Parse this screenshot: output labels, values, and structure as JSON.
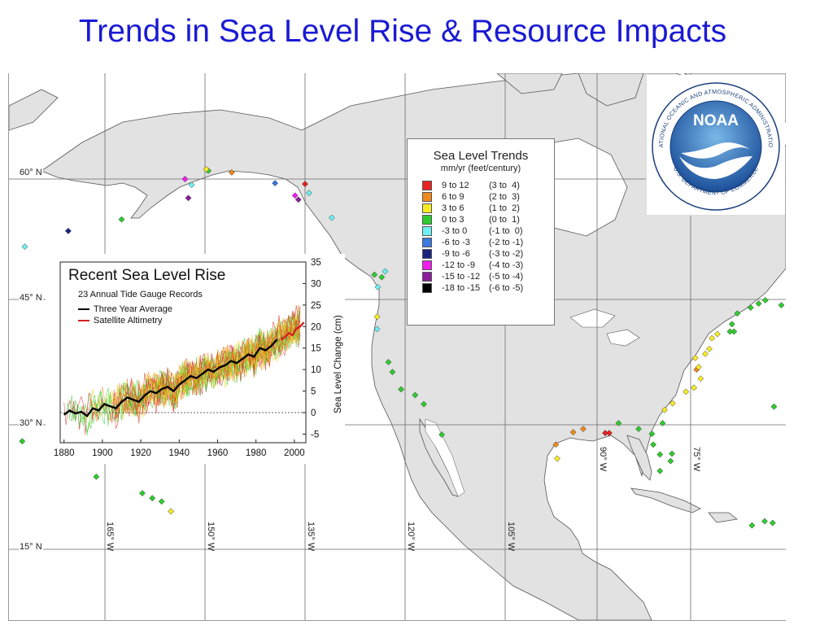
{
  "title": "Trends in Sea Level Rise & Resource Impacts",
  "map": {
    "lat_labels": [
      "60° N",
      "45° N",
      "30° N",
      "15° N"
    ],
    "lon_labels": [
      "165° W",
      "150° W",
      "135° W",
      "120° W",
      "105° W",
      "90° W",
      "75° W"
    ]
  },
  "legend": {
    "title": "Sea Level Trends",
    "subtitle": "mm/yr (feet/century)",
    "items": [
      {
        "range": "9 to 12",
        "feet": "(3 to  4)",
        "color": "#e8231f"
      },
      {
        "range": "6 to 9",
        "feet": "(2 to  3)",
        "color": "#f08a1c"
      },
      {
        "range": "3 to 6",
        "feet": "(1 to  2)",
        "color": "#f7ec24"
      },
      {
        "range": "0 to 3",
        "feet": "(0 to  1)",
        "color": "#2ecc2e"
      },
      {
        "range": "-3 to 0",
        "feet": "(-1 to  0)",
        "color": "#6ff0f2"
      },
      {
        "range": "-6 to -3",
        "feet": "(-2 to -1)",
        "color": "#3b78e0"
      },
      {
        "range": "-9 to -6",
        "feet": "(-3 to -2)",
        "color": "#1a2480"
      },
      {
        "range": "-12 to -9",
        "feet": "(-4 to -3)",
        "color": "#f01cf0"
      },
      {
        "range": "-15 to -12",
        "feet": "(-5 to -4)",
        "color": "#8a1e9a"
      },
      {
        "range": "-18 to -15",
        "feet": "(-6 to -5)",
        "color": "#000000"
      }
    ]
  },
  "noaa_logo": {
    "text": "NOAA",
    "ring_text": "NATIONAL OCEANIC AND ATMOSPHERIC ADMINISTRATION",
    "bottom_text": "U.S. DEPARTMENT OF COMMERCE"
  },
  "inset_chart": {
    "title": "Recent Sea Level Rise",
    "subtitle": "23 Annual Tide Gauge Records",
    "legend": [
      {
        "label": "Three Year Average",
        "color": "#000000"
      },
      {
        "label": "Satellite Altimetry",
        "color": "#d42020"
      }
    ]
  },
  "chart_data": {
    "type": "line",
    "title": "Recent Sea Level Rise",
    "subtitle": "23 Annual Tide Gauge Records",
    "xlabel": "",
    "ylabel": "Sea Level Change (cm)",
    "xlim": [
      1878,
      2006
    ],
    "ylim": [
      -7,
      35
    ],
    "x_ticks": [
      1880,
      1900,
      1920,
      1940,
      1960,
      1980,
      2000
    ],
    "y_ticks": [
      -5,
      0,
      5,
      10,
      15,
      20,
      25,
      30,
      35
    ],
    "zero_line": "dashed",
    "series": [
      {
        "name": "Three Year Average",
        "color": "#000000",
        "x": [
          1880,
          1883,
          1886,
          1889,
          1892,
          1895,
          1898,
          1901,
          1904,
          1907,
          1910,
          1913,
          1916,
          1919,
          1922,
          1925,
          1928,
          1931,
          1934,
          1937,
          1940,
          1943,
          1946,
          1949,
          1952,
          1955,
          1958,
          1961,
          1964,
          1967,
          1970,
          1973,
          1976,
          1979,
          1982,
          1985,
          1988,
          1991
        ],
        "values": [
          -0.5,
          0.5,
          -0.2,
          0.2,
          -0.8,
          1.0,
          0.5,
          2.0,
          1.5,
          1.0,
          2.5,
          3.5,
          3.0,
          2.5,
          4.0,
          5.0,
          4.5,
          5.5,
          6.0,
          5.0,
          6.5,
          7.5,
          8.5,
          8.0,
          9.0,
          10.0,
          9.5,
          10.5,
          11.0,
          12.0,
          11.5,
          12.5,
          13.5,
          13.0,
          15.0,
          14.5,
          15.5,
          17.0
        ]
      },
      {
        "name": "Satellite Altimetry",
        "color": "#d42020",
        "x": [
          1993,
          1995,
          1997,
          1999,
          2001,
          2003,
          2005
        ],
        "values": [
          17.0,
          17.5,
          18.5,
          18.0,
          19.5,
          20.0,
          21.0
        ]
      }
    ],
    "tide_gauge_records": {
      "count": 23,
      "colors": [
        "#d42020",
        "#f08a1c",
        "#e8d21a",
        "#2ecc2e"
      ]
    }
  },
  "stations": [
    {
      "c": 4,
      "lon": -131,
      "lat": 55.3
    },
    {
      "c": 4,
      "lon": -134.4,
      "lat": 58.3
    },
    {
      "c": 0,
      "lon": -135,
      "lat": 59.4
    },
    {
      "c": 7,
      "lon": -136.5,
      "lat": 58.0
    },
    {
      "c": 8,
      "lon": -136.0,
      "lat": 57.5
    },
    {
      "c": 3,
      "lon": -149.5,
      "lat": 61.0
    },
    {
      "c": 2,
      "lon": -149.8,
      "lat": 61.2
    },
    {
      "c": 1,
      "lon": -146.0,
      "lat": 60.8
    },
    {
      "c": 5,
      "lon": -139.5,
      "lat": 59.5
    },
    {
      "c": 4,
      "lon": -152.0,
      "lat": 59.3
    },
    {
      "c": 7,
      "lon": -153.0,
      "lat": 60.0
    },
    {
      "c": 8,
      "lon": -152.5,
      "lat": 57.7
    },
    {
      "c": 3,
      "lon": -162.5,
      "lat": 55.1
    },
    {
      "c": 6,
      "lon": -170.5,
      "lat": 53.7
    },
    {
      "c": 4,
      "lon": -177.0,
      "lat": 51.8
    },
    {
      "c": 3,
      "lon": -124.6,
      "lat": 48.4
    },
    {
      "c": 4,
      "lon": -123.0,
      "lat": 48.8
    },
    {
      "c": 3,
      "lon": -123.5,
      "lat": 48.1
    },
    {
      "c": 4,
      "lon": -124.1,
      "lat": 46.9
    },
    {
      "c": 2,
      "lon": -124.2,
      "lat": 43.3
    },
    {
      "c": 4,
      "lon": -124.2,
      "lat": 41.8
    },
    {
      "c": 3,
      "lon": -122.5,
      "lat": 37.8
    },
    {
      "c": 3,
      "lon": -121.9,
      "lat": 36.6
    },
    {
      "c": 3,
      "lon": -120.6,
      "lat": 34.5
    },
    {
      "c": 3,
      "lon": -118.5,
      "lat": 33.8
    },
    {
      "c": 3,
      "lon": -117.2,
      "lat": 32.7
    },
    {
      "c": 3,
      "lon": -114.5,
      "lat": 29.0
    },
    {
      "c": 2,
      "lon": -97.2,
      "lat": 26.1
    },
    {
      "c": 1,
      "lon": -97.4,
      "lat": 27.8
    },
    {
      "c": 1,
      "lon": -94.8,
      "lat": 29.3
    },
    {
      "c": 1,
      "lon": -93.3,
      "lat": 29.7
    },
    {
      "c": 0,
      "lon": -90.0,
      "lat": 29.2
    },
    {
      "c": 0,
      "lon": -89.4,
      "lat": 29.2
    },
    {
      "c": 3,
      "lon": -88.0,
      "lat": 30.4
    },
    {
      "c": 3,
      "lon": -85.0,
      "lat": 29.7
    },
    {
      "c": 3,
      "lon": -83.0,
      "lat": 29.1
    },
    {
      "c": 3,
      "lon": -82.8,
      "lat": 27.8
    },
    {
      "c": 3,
      "lon": -81.8,
      "lat": 26.6
    },
    {
      "c": 3,
      "lon": -81.8,
      "lat": 24.6
    },
    {
      "c": 3,
      "lon": -80.2,
      "lat": 25.8
    },
    {
      "c": 3,
      "lon": -80.0,
      "lat": 26.7
    },
    {
      "c": 3,
      "lon": -81.4,
      "lat": 30.4
    },
    {
      "c": 2,
      "lon": -81.1,
      "lat": 32.0
    },
    {
      "c": 2,
      "lon": -79.9,
      "lat": 32.8
    },
    {
      "c": 2,
      "lon": -77.9,
      "lat": 34.2
    },
    {
      "c": 2,
      "lon": -76.7,
      "lat": 34.7
    },
    {
      "c": 2,
      "lon": -75.7,
      "lat": 35.8
    },
    {
      "c": 1,
      "lon": -76.3,
      "lat": 36.9
    },
    {
      "c": 2,
      "lon": -76.0,
      "lat": 37.2
    },
    {
      "c": 2,
      "lon": -76.5,
      "lat": 38.3
    },
    {
      "c": 2,
      "lon": -75.0,
      "lat": 38.8
    },
    {
      "c": 2,
      "lon": -74.4,
      "lat": 39.4
    },
    {
      "c": 2,
      "lon": -74.0,
      "lat": 40.7
    },
    {
      "c": 2,
      "lon": -73.2,
      "lat": 41.2
    },
    {
      "c": 3,
      "lon": -71.3,
      "lat": 41.5
    },
    {
      "c": 3,
      "lon": -70.7,
      "lat": 41.5
    },
    {
      "c": 3,
      "lon": -71.0,
      "lat": 42.4
    },
    {
      "c": 3,
      "lon": -70.2,
      "lat": 43.7
    },
    {
      "c": 3,
      "lon": -68.2,
      "lat": 44.4
    },
    {
      "c": 3,
      "lon": -67.0,
      "lat": 44.9
    },
    {
      "c": 3,
      "lon": -66.0,
      "lat": 45.3
    },
    {
      "c": 3,
      "lon": -63.6,
      "lat": 44.7
    },
    {
      "c": 3,
      "lon": -61.0,
      "lat": 46.0
    },
    {
      "c": 3,
      "lon": -64.7,
      "lat": 32.4
    },
    {
      "c": 3,
      "lon": -66.1,
      "lat": 18.5
    },
    {
      "c": 3,
      "lon": -64.9,
      "lat": 18.3
    },
    {
      "c": 3,
      "lon": -68.0,
      "lat": 18.0
    },
    {
      "c": 3,
      "lon": -157.9,
      "lat": 21.3
    },
    {
      "c": 3,
      "lon": -159.4,
      "lat": 21.9
    },
    {
      "c": 3,
      "lon": -156.5,
      "lat": 20.9
    },
    {
      "c": 2,
      "lon": -155.1,
      "lat": 19.7
    },
    {
      "c": 3,
      "lon": -177.4,
      "lat": 28.2
    },
    {
      "c": 3,
      "lon": -166.3,
      "lat": 23.9
    },
    {
      "c": 4,
      "lon": -179.4,
      "lat": 51.9
    }
  ]
}
